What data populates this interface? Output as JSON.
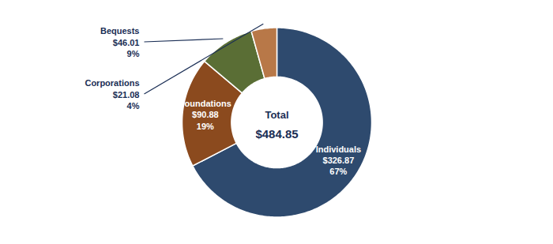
{
  "chart_data": {
    "type": "pie",
    "categories": [
      "Individuals",
      "Foundations",
      "Bequests",
      "Corporations"
    ],
    "values": [
      326.87,
      90.88,
      46.01,
      21.08
    ],
    "value_labels": [
      "$326.87",
      "$90.88",
      "$46.01",
      "$21.08"
    ],
    "percentages": [
      {
        "value": 67,
        "label": "67%"
      },
      {
        "value": 19,
        "label": "19%"
      },
      {
        "value": 9,
        "label": "9%"
      },
      {
        "value": 4,
        "label": "4%"
      }
    ],
    "colors": [
      "#2e4a6e",
      "#8b4a1e",
      "#5a6e35",
      "#b87848"
    ],
    "center_text": "Total",
    "total": {
      "value": 484.85,
      "label": "$484.85"
    }
  }
}
